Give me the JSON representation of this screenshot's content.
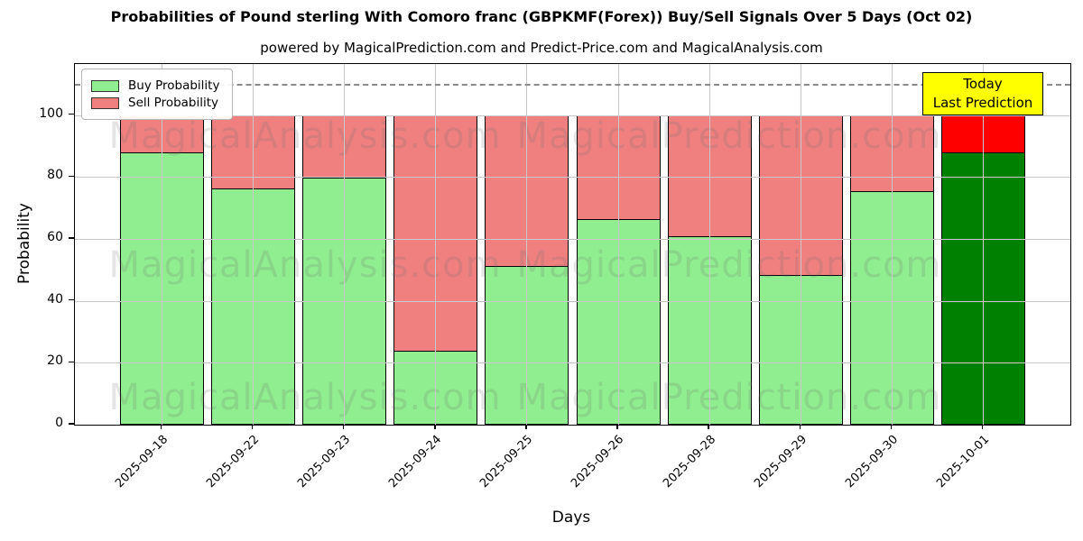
{
  "title": "Probabilities of Pound sterling With Comoro franc (GBPKMF(Forex)) Buy/Sell Signals Over 5 Days (Oct 02)",
  "subtitle": "powered by MagicalPrediction.com and Predict-Price.com and MagicalAnalysis.com",
  "chart_data": {
    "type": "bar",
    "stacked": true,
    "title": "Probabilities of Pound sterling With Comoro franc (GBPKMF(Forex)) Buy/Sell Signals Over 5 Days (Oct 02)",
    "xlabel": "Days",
    "ylabel": "Probability",
    "categories": [
      "2025-09-18",
      "2025-09-22",
      "2025-09-23",
      "2025-09-24",
      "2025-09-25",
      "2025-09-26",
      "2025-09-28",
      "2025-09-29",
      "2025-09-30",
      "2025-10-01"
    ],
    "series": [
      {
        "name": "Buy Probability",
        "color": "#90EE90",
        "values": [
          88,
          76.5,
          80,
          24,
          51.5,
          66.5,
          61,
          48.5,
          75.5,
          88
        ]
      },
      {
        "name": "Sell Probability",
        "color": "#F08080",
        "values": [
          12,
          23.5,
          20,
          76,
          48.5,
          33.5,
          39,
          51.5,
          24.5,
          12
        ]
      }
    ],
    "today_bar": {
      "index": 9,
      "buy_color": "#008000",
      "sell_color": "#FF0000"
    },
    "yticks": [
      0,
      20,
      40,
      60,
      80,
      100
    ],
    "ylim": [
      0,
      116.5
    ],
    "dashed_line_y": 110,
    "grid": true,
    "legend_position": "upper left",
    "edge_color": "#000000",
    "grid_color": "#c9c9c9"
  },
  "legend": {
    "items": [
      {
        "label": "Buy Probability",
        "color": "#90EE90"
      },
      {
        "label": "Sell Probability",
        "color": "#F08080"
      }
    ]
  },
  "annotation": {
    "line1": "Today",
    "line2": "Last Prediction",
    "bg_color": "#FFFF00"
  },
  "watermarks": {
    "left_text": "MagicalAnalysis.com",
    "right_text": "MagicalPrediction.com"
  }
}
